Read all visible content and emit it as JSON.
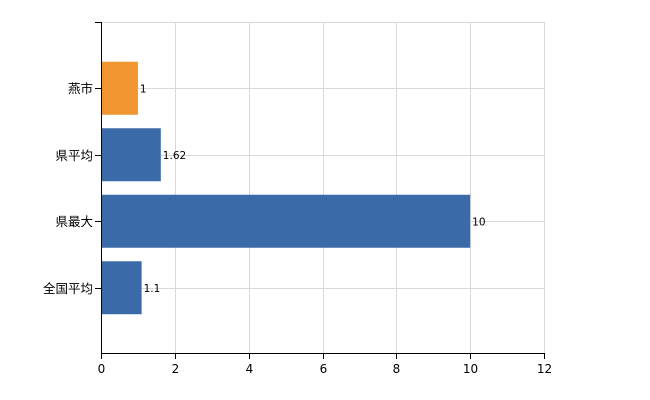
{
  "chart_data": {
    "type": "bar",
    "orientation": "horizontal",
    "categories": [
      "燕市",
      "県平均",
      "県最大",
      "全国平均"
    ],
    "values": [
      1,
      1.62,
      10,
      1.1
    ],
    "value_labels": [
      "1",
      "1.62",
      "10",
      "1.1"
    ],
    "bar_colors": [
      "#f0952f",
      "#3b6aa8",
      "#3b6aa8",
      "#3b6aa8"
    ],
    "xlim": [
      0,
      12
    ],
    "xticks": [
      "0",
      "2",
      "4",
      "6",
      "8",
      "10",
      "12"
    ],
    "grid": true,
    "title": "",
    "xlabel": "",
    "ylabel": ""
  }
}
